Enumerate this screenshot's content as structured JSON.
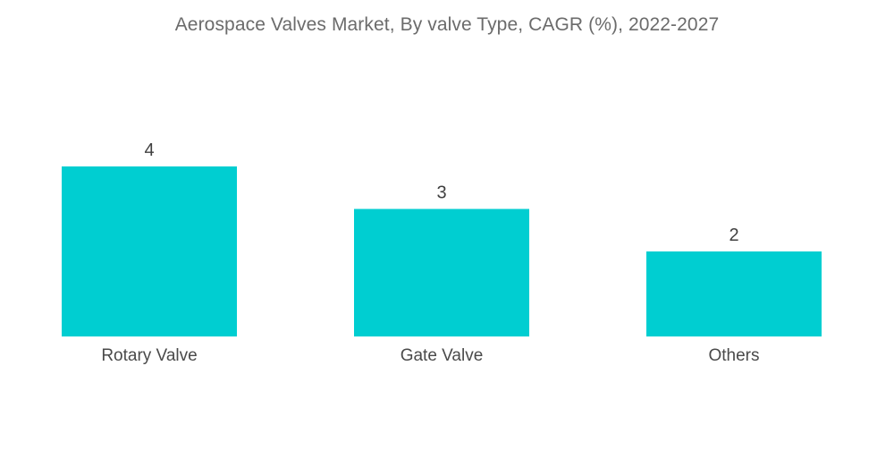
{
  "chart_data": {
    "type": "bar",
    "title": "Aerospace Valves Market, By valve Type, CAGR (%), 2022-2027",
    "categories": [
      "Rotary Valve",
      "Gate Valve",
      "Others"
    ],
    "values": [
      4,
      3,
      2
    ],
    "data_labels": [
      "4",
      "3",
      "2"
    ],
    "xlabel": "",
    "ylabel": "",
    "ylim": [
      0,
      4
    ],
    "grid": false,
    "legend": "none",
    "colors": {
      "bar": "#00CED1"
    }
  }
}
